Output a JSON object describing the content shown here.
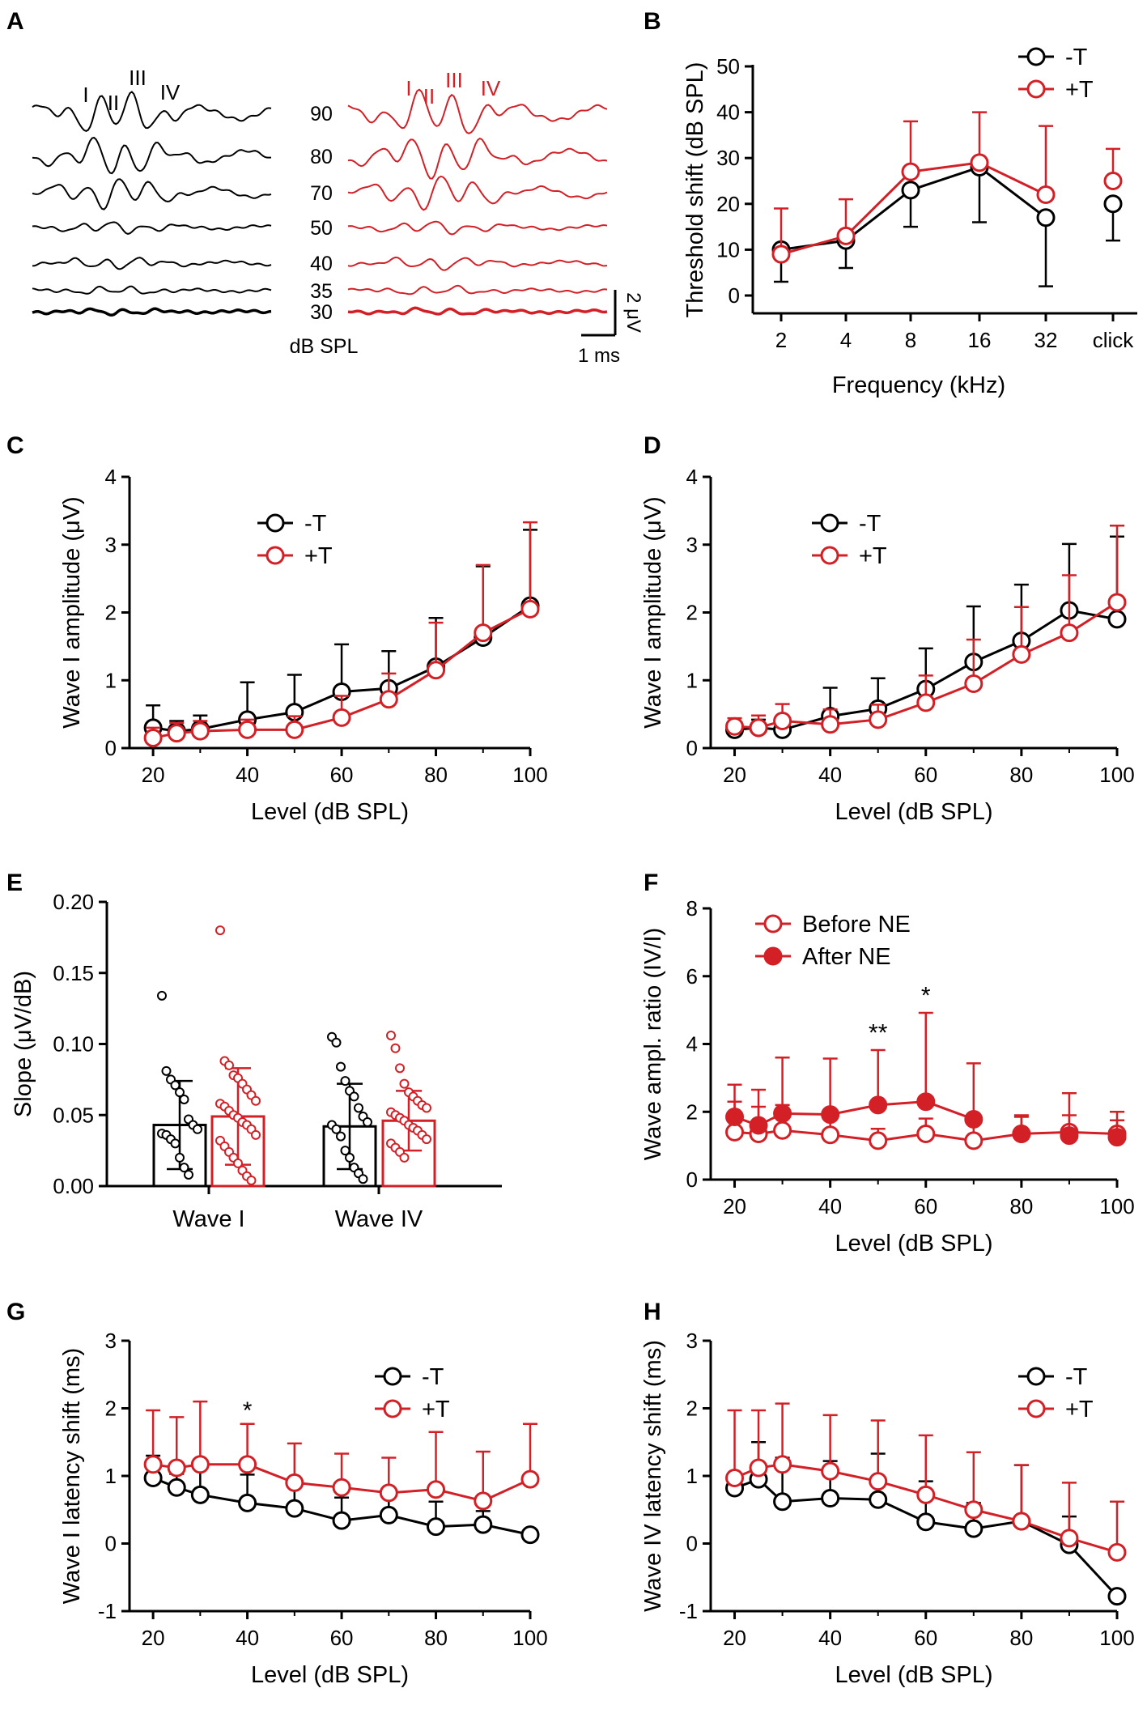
{
  "colors": {
    "control": "#000000",
    "treated": "#d32027"
  },
  "chart_data": [
    {
      "panel": "A",
      "type": "line",
      "title": "",
      "level_unit": "dB SPL",
      "levels": [
        "90",
        "80",
        "70",
        "50",
        "40",
        "35",
        "30"
      ],
      "peak_labels_control": [
        "I",
        "II",
        "III",
        "IV"
      ],
      "peak_labels_treated": [
        "I",
        "II",
        "III",
        "IV"
      ],
      "scale_amplitude": "2 μV",
      "scale_time": "1 ms"
    },
    {
      "panel": "B",
      "type": "line",
      "xlabel": "Frequency (kHz)",
      "ylabel": "Threshold shift (dB SPL)",
      "categories": [
        "2",
        "4",
        "8",
        "16",
        "32",
        "click"
      ],
      "ylim": [
        0,
        50
      ],
      "yticks": [
        "0",
        "10",
        "20",
        "30",
        "40",
        "50"
      ],
      "legend": [
        "-T",
        "+T"
      ],
      "series": [
        {
          "name": "-T",
          "values": [
            10,
            12,
            23,
            28,
            17,
            20
          ],
          "err": [
            7,
            6,
            8,
            12,
            15,
            8
          ]
        },
        {
          "name": "+T",
          "values": [
            9,
            13,
            27,
            29,
            22,
            25
          ],
          "err": [
            10,
            8,
            11,
            11,
            15,
            7
          ]
        }
      ]
    },
    {
      "panel": "C",
      "type": "line",
      "xlabel": "Level (dB SPL)",
      "ylabel": "Wave I amplitude (μV)",
      "x": [
        20,
        25,
        30,
        40,
        50,
        60,
        70,
        80,
        90,
        100
      ],
      "xlim": [
        15,
        100
      ],
      "ylim": [
        0,
        4
      ],
      "xticks": [
        "20",
        "40",
        "60",
        "80",
        "100"
      ],
      "yticks": [
        "0",
        "1",
        "2",
        "3",
        "4"
      ],
      "legend": [
        "-T",
        "+T"
      ],
      "series": [
        {
          "name": "-T",
          "values": [
            0.3,
            0.25,
            0.28,
            0.42,
            0.53,
            0.83,
            0.88,
            1.2,
            1.63,
            2.1
          ],
          "err": [
            0.33,
            0.15,
            0.2,
            0.55,
            0.55,
            0.7,
            0.55,
            0.72,
            1.05,
            1.12
          ]
        },
        {
          "name": "+T",
          "values": [
            0.15,
            0.22,
            0.25,
            0.27,
            0.27,
            0.45,
            0.72,
            1.15,
            1.7,
            2.05
          ],
          "err": [
            0.15,
            0.15,
            0.15,
            0.15,
            0.2,
            0.32,
            0.38,
            0.7,
            1.0,
            1.28
          ]
        }
      ]
    },
    {
      "panel": "D",
      "type": "line",
      "xlabel": "Level (dB SPL)",
      "ylabel": "Wave I amplitude (μV)",
      "x": [
        20,
        25,
        30,
        40,
        50,
        60,
        70,
        80,
        90,
        100
      ],
      "xlim": [
        15,
        100
      ],
      "ylim": [
        0,
        4
      ],
      "xticks": [
        "20",
        "40",
        "60",
        "80",
        "100"
      ],
      "yticks": [
        "0",
        "1",
        "2",
        "3",
        "4"
      ],
      "legend": [
        "-T",
        "+T"
      ],
      "series": [
        {
          "name": "-T",
          "values": [
            0.27,
            0.3,
            0.27,
            0.47,
            0.58,
            0.87,
            1.27,
            1.58,
            2.03,
            1.9
          ],
          "err": [
            0.1,
            0.12,
            0.15,
            0.42,
            0.45,
            0.6,
            0.82,
            0.83,
            0.98,
            1.22
          ]
        },
        {
          "name": "+T",
          "values": [
            0.32,
            0.3,
            0.4,
            0.35,
            0.42,
            0.67,
            0.95,
            1.38,
            1.7,
            2.15
          ],
          "err": [
            0.12,
            0.18,
            0.25,
            0.22,
            0.22,
            0.4,
            0.65,
            0.7,
            0.85,
            1.13
          ]
        }
      ]
    },
    {
      "panel": "E",
      "type": "bar",
      "xlabel": "",
      "ylabel": "Slope (μV/dB)",
      "categories": [
        "Wave I",
        "Wave IV"
      ],
      "ylim": [
        0,
        0.2
      ],
      "yticks": [
        "0.00",
        "0.05",
        "0.10",
        "0.15",
        "0.20"
      ],
      "series": [
        {
          "name": "-T",
          "values": [
            0.043,
            0.042
          ],
          "err": [
            0.031,
            0.03
          ],
          "points": [
            [
              0.134,
              0.081,
              0.075,
              0.071,
              0.066,
              0.061,
              0.047,
              0.043,
              0.04,
              0.037,
              0.036,
              0.033,
              0.03,
              0.02,
              0.013,
              0.008
            ],
            [
              0.105,
              0.101,
              0.084,
              0.074,
              0.067,
              0.063,
              0.055,
              0.049,
              0.045,
              0.043,
              0.04,
              0.035,
              0.025,
              0.02,
              0.013,
              0.009,
              0.005
            ]
          ]
        },
        {
          "name": "+T",
          "values": [
            0.049,
            0.046
          ],
          "err": [
            0.034,
            0.021
          ],
          "points": [
            [
              0.18,
              0.088,
              0.085,
              0.078,
              0.076,
              0.072,
              0.068,
              0.064,
              0.06,
              0.058,
              0.056,
              0.053,
              0.05,
              0.048,
              0.045,
              0.043,
              0.04,
              0.036,
              0.032,
              0.028,
              0.024,
              0.02,
              0.016,
              0.011,
              0.007,
              0.004
            ],
            [
              0.106,
              0.097,
              0.083,
              0.072,
              0.066,
              0.063,
              0.06,
              0.057,
              0.055,
              0.052,
              0.05,
              0.048,
              0.046,
              0.043,
              0.041,
              0.039,
              0.036,
              0.033,
              0.03,
              0.027,
              0.024,
              0.02
            ]
          ]
        }
      ]
    },
    {
      "panel": "F",
      "type": "line",
      "xlabel": "Level (dB SPL)",
      "ylabel": "Wave ampl. ratio (IV/I)",
      "xlim": [
        15,
        100
      ],
      "ylim": [
        0,
        8
      ],
      "xticks": [
        "20",
        "40",
        "60",
        "80",
        "100"
      ],
      "yticks": [
        "0",
        "2",
        "4",
        "6",
        "8"
      ],
      "legend": [
        "Before NE",
        "After NE"
      ],
      "annotations": [
        {
          "x": 50,
          "y": 4.1,
          "text": "**"
        },
        {
          "x": 60,
          "y": 5.2,
          "text": "*"
        }
      ],
      "series": [
        {
          "name": "Before NE",
          "x": [
            20,
            25,
            30,
            40,
            50,
            60,
            70,
            80,
            90,
            100
          ],
          "values": [
            1.4,
            1.35,
            1.45,
            1.32,
            1.15,
            1.35,
            1.15,
            1.35,
            1.4,
            1.35
          ],
          "err": [
            0.9,
            0.8,
            0.75,
            0.6,
            0.35,
            0.45,
            0.5,
            0.5,
            0.5,
            0.4
          ]
        },
        {
          "name": "After NE",
          "x": [
            20,
            25,
            30,
            40,
            50,
            60,
            70,
            80,
            90,
            100
          ],
          "values": [
            1.85,
            1.6,
            1.95,
            1.92,
            2.2,
            2.3,
            1.78,
            1.35,
            1.3,
            1.25
          ],
          "err": [
            0.95,
            1.05,
            1.65,
            1.65,
            1.62,
            2.62,
            1.65,
            0.55,
            1.25,
            0.75
          ]
        }
      ]
    },
    {
      "panel": "G",
      "type": "line",
      "xlabel": "Level (dB SPL)",
      "ylabel": "Wave I latency shift (ms)",
      "x": [
        20,
        25,
        30,
        40,
        50,
        60,
        70,
        80,
        90,
        100
      ],
      "xlim": [
        15,
        100
      ],
      "ylim": [
        -1,
        3
      ],
      "xticks": [
        "20",
        "40",
        "60",
        "80",
        "100"
      ],
      "yticks": [
        "-1",
        "0",
        "1",
        "2",
        "3"
      ],
      "legend": [
        "-T",
        "+T"
      ],
      "annotations": [
        {
          "x": 40,
          "y": 1.85,
          "text": "*"
        }
      ],
      "series": [
        {
          "name": "-T",
          "values": [
            0.97,
            0.83,
            0.72,
            0.6,
            0.52,
            0.34,
            0.42,
            0.25,
            0.28,
            0.13
          ],
          "err": [
            0.33,
            0.2,
            0.5,
            0.42,
            0.43,
            0.34,
            0.35,
            0.37,
            0.2,
            0.05
          ]
        },
        {
          "name": "+T",
          "values": [
            1.17,
            1.12,
            1.17,
            1.17,
            0.9,
            0.83,
            0.75,
            0.8,
            0.63,
            0.95
          ],
          "err": [
            0.8,
            0.75,
            0.93,
            0.6,
            0.58,
            0.5,
            0.52,
            0.85,
            0.73,
            0.82
          ]
        }
      ]
    },
    {
      "panel": "H",
      "type": "line",
      "xlabel": "Level (dB SPL)",
      "ylabel": "Wave IV latency shift (ms)",
      "x": [
        20,
        25,
        30,
        40,
        50,
        60,
        70,
        80,
        90,
        100
      ],
      "xlim": [
        15,
        100
      ],
      "ylim": [
        -1,
        3
      ],
      "xticks": [
        "20",
        "40",
        "60",
        "80",
        "100"
      ],
      "yticks": [
        "-1",
        "0",
        "1",
        "2",
        "3"
      ],
      "legend": [
        "-T",
        "+T"
      ],
      "series": [
        {
          "name": "-T",
          "values": [
            0.82,
            0.95,
            0.62,
            0.67,
            0.65,
            0.32,
            0.22,
            0.33,
            -0.02,
            -0.78
          ],
          "err": [
            0.15,
            0.55,
            0.65,
            0.55,
            0.68,
            0.6,
            0.38,
            0.83,
            0.42,
            0.05
          ]
        },
        {
          "name": "+T",
          "values": [
            0.97,
            1.12,
            1.17,
            1.07,
            0.92,
            0.72,
            0.5,
            0.33,
            0.08,
            -0.13
          ],
          "err": [
            1.0,
            0.85,
            0.9,
            0.83,
            0.9,
            0.88,
            0.85,
            0.83,
            0.82,
            0.75
          ]
        }
      ]
    }
  ]
}
